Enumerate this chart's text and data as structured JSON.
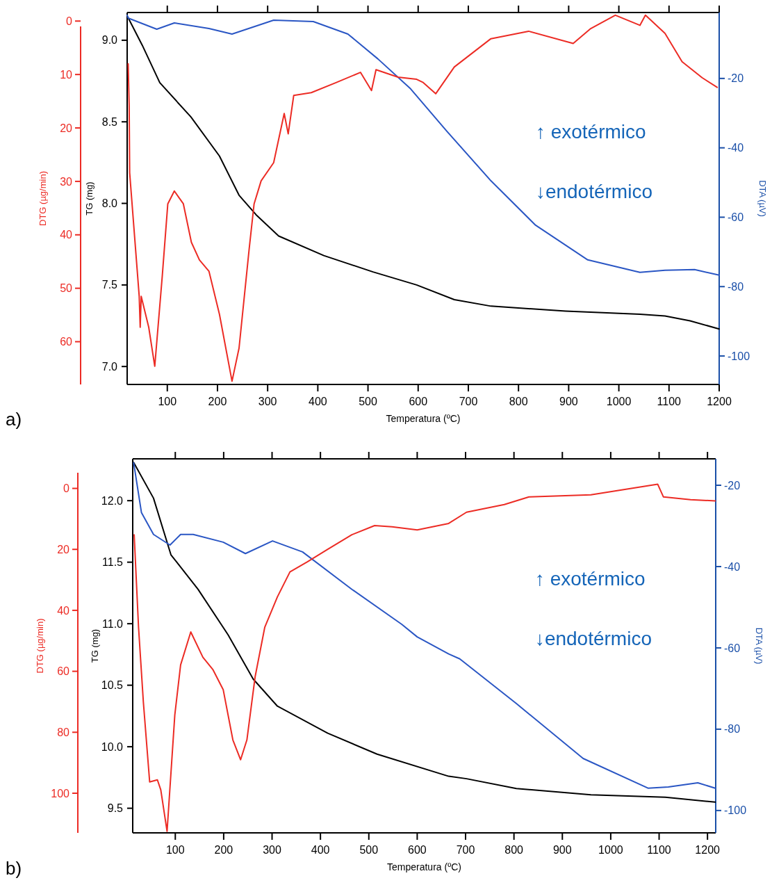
{
  "chart_data": [
    {
      "type": "line",
      "title": "a)",
      "xlabel": "Temperatura (ºC)",
      "ylabel": "TG (mg)",
      "y2label": "DTA (µV)",
      "y3label": "DTG (µg/min)",
      "annotations": [
        "↑ exotérmico",
        "↓endotérmico"
      ],
      "xlim": [
        20,
        1200
      ],
      "xticks": [
        100,
        200,
        300,
        400,
        500,
        600,
        700,
        800,
        900,
        1000,
        1100,
        1200
      ],
      "ylim": [
        6.89,
        9.17
      ],
      "yticks": [
        {
          "value": 7,
          "label": "7.0"
        },
        7.5,
        {
          "value": 8,
          "label": "8.0"
        },
        8.5,
        {
          "value": 9,
          "label": "9.0"
        }
      ],
      "y2lim": [
        -108.2,
        -1
      ],
      "y2ticks": [
        -100,
        -80,
        -60,
        -40,
        -20
      ],
      "y3lim": [
        68,
        -1.6
      ],
      "y3ticks": [
        0,
        10,
        20,
        30,
        40,
        50,
        60
      ],
      "series": [
        {
          "color": "#000000",
          "axis": "y",
          "x": [
            20,
            50,
            85,
            147,
            204,
            243,
            277,
            322,
            412,
            510,
            597,
            672,
            745,
            894,
            1042,
            1092,
            1142,
            1200
          ],
          "values": [
            9.15,
            8.97,
            8.74,
            8.53,
            8.29,
            8.05,
            7.93,
            7.8,
            7.68,
            7.58,
            7.5,
            7.41,
            7.37,
            7.34,
            7.32,
            7.31,
            7.28,
            7.23
          ]
        },
        {
          "color": "#2a56c4",
          "axis": "y2",
          "x": [
            20,
            22,
            79,
            114,
            183,
            229,
            312,
            391,
            460,
            520,
            585,
            657,
            745,
            834,
            938,
            1042,
            1092,
            1151,
            1200
          ],
          "values": [
            -1.8,
            -2.6,
            -5.8,
            -4,
            -5.6,
            -7.2,
            -3.2,
            -3.6,
            -7.2,
            -14.4,
            -23,
            -35.2,
            -49.5,
            -62.3,
            -72.3,
            -75.9,
            -75.3,
            -75.1,
            -76.7
          ]
        },
        {
          "color": "#ec2b24",
          "axis": "y3",
          "x": [
            22,
            24,
            25,
            44,
            46,
            48,
            63,
            75,
            90,
            101,
            114,
            132,
            148,
            164,
            183,
            204,
            229,
            243,
            263,
            273,
            287,
            312,
            333,
            341,
            352,
            387,
            437,
            485,
            507,
            516,
            560,
            597,
            610,
            635,
            672,
            745,
            820,
            909,
            944,
            993,
            1042,
            1053,
            1092,
            1126,
            1166,
            1196
          ],
          "values": [
            8,
            15.8,
            28.4,
            51.5,
            57.3,
            51.5,
            57.3,
            64.6,
            47.7,
            34.2,
            31.8,
            34.2,
            41.4,
            44.7,
            46.8,
            54.9,
            67.4,
            61.2,
            42.8,
            34.2,
            29.9,
            26.5,
            17.3,
            21.1,
            13.9,
            13.4,
            11.5,
            9.6,
            13,
            9.1,
            10.5,
            10.9,
            11.5,
            13.6,
            8.6,
            3.3,
            1.9,
            4.2,
            1.4,
            -1.1,
            0.8,
            -1.1,
            2.3,
            7.6,
            10.6,
            12.4
          ]
        }
      ]
    },
    {
      "type": "line",
      "title": "b)",
      "xlabel": "Temperatura (ºC)",
      "ylabel": "TG (mg)",
      "y2label": "DTA (µV)",
      "y3label": "DTG (µg/min)",
      "annotations": [
        "↑ exotérmico",
        "↓endotérmico"
      ],
      "xlim": [
        12,
        1217
      ],
      "xticks": [
        100,
        200,
        300,
        400,
        500,
        600,
        700,
        800,
        900,
        1000,
        1100,
        1200
      ],
      "ylim": [
        9.3,
        12.34
      ],
      "yticks": [
        9.5,
        {
          "value": 10,
          "label": "10.0"
        },
        10.5,
        {
          "value": 11,
          "label": "11.0"
        },
        11.5,
        {
          "value": 12,
          "label": "12.0"
        }
      ],
      "y2lim": [
        -105.5,
        -13.5
      ],
      "y2ticks": [
        -100,
        -80,
        -60,
        -40,
        -20
      ],
      "y3lim": [
        113,
        -9.7
      ],
      "y3ticks": [
        0,
        20,
        40,
        60,
        80,
        100
      ],
      "series": [
        {
          "color": "#000000",
          "axis": "y",
          "x": [
            14,
            55,
            91,
            147,
            209,
            261,
            311,
            415,
            517,
            665,
            702,
            805,
            959,
            1113,
            1216
          ],
          "values": [
            12.31,
            12.02,
            11.56,
            11.28,
            10.91,
            10.55,
            10.33,
            10.11,
            9.94,
            9.76,
            9.74,
            9.66,
            9.61,
            9.59,
            9.55
          ]
        },
        {
          "color": "#2a56c4",
          "axis": "y2",
          "x": [
            14,
            30,
            55,
            89,
            111,
            137,
            199,
            245,
            301,
            363,
            465,
            568,
            600,
            665,
            688,
            805,
            943,
            1077,
            1119,
            1180,
            1216
          ],
          "values": [
            -14.5,
            -26.7,
            -32.1,
            -34.7,
            -32.1,
            -32.1,
            -34,
            -36.8,
            -33.7,
            -36.4,
            -45.6,
            -54.2,
            -57.3,
            -61.5,
            -62.7,
            -73.7,
            -87.2,
            -94.5,
            -94.2,
            -93.2,
            -94.5
          ]
        },
        {
          "color": "#ec2b24",
          "axis": "y3",
          "x": [
            15,
            24,
            34,
            47,
            63,
            70,
            83,
            99,
            111,
            132,
            157,
            178,
            199,
            219,
            235,
            248,
            265,
            285,
            311,
            337,
            373,
            415,
            465,
            512,
            548,
            600,
            665,
            702,
            780,
            831,
            959,
            1097,
            1109,
            1165,
            1216
          ],
          "values": [
            15.2,
            45.5,
            70.1,
            96.3,
            95.6,
            98.9,
            112.5,
            74.3,
            57.9,
            47.1,
            55.4,
            59.5,
            66,
            82.5,
            89,
            82.5,
            61.8,
            45.5,
            35.6,
            27.4,
            24.1,
            20,
            15.2,
            12.2,
            12.6,
            13.6,
            11.5,
            7.8,
            5.3,
            2.8,
            2.1,
            -1.4,
            2.8,
            3.7,
            4.1
          ]
        }
      ]
    }
  ]
}
